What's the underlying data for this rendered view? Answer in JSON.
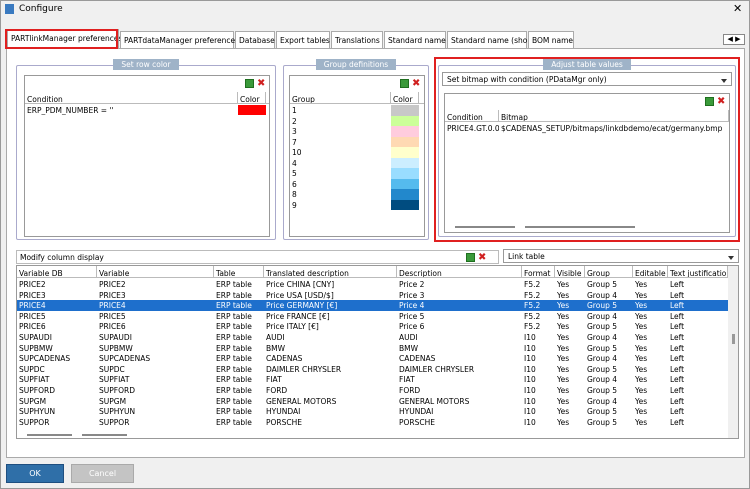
{
  "window": {
    "title": "Configure"
  },
  "tabs": {
    "items": [
      "PARTlinkManager preferences",
      "PARTdataManager preferences",
      "Database",
      "Export tables",
      "Translations",
      "Standard name",
      "Standard name (short)",
      "BOM name"
    ],
    "active": 0
  },
  "set_row_color": {
    "title": "Set row color",
    "columns": [
      "Condition",
      "Color"
    ],
    "rows": [
      [
        "ERP_PDM_NUMBER = ''"
      ]
    ],
    "colors": [
      "#ff0000"
    ]
  },
  "group_definitions": {
    "title": "Group definitions",
    "columns": [
      "Group",
      "Color"
    ],
    "rows": [
      [
        "1"
      ],
      [
        "2"
      ],
      [
        "3"
      ],
      [
        "7"
      ],
      [
        "10"
      ],
      [
        "4"
      ],
      [
        "5"
      ],
      [
        "6"
      ],
      [
        "8"
      ],
      [
        "9"
      ]
    ],
    "colors": [
      "#c8c8c8",
      "#ccff99",
      "#ffccdd",
      "#ffd9b3",
      "#ffffcc",
      "#cceeff",
      "#99ddff",
      "#55bbee",
      "#2288cc",
      "#004c80"
    ]
  },
  "adjust_table_values": {
    "title": "Adjust table values",
    "dropdown": "Set bitmap with condition (PDataMgr only)",
    "columns": [
      "Condition",
      "Bitmap"
    ],
    "rows": [
      [
        "PRICE4.GT.0.0",
        "$CADENAS_SETUP/bitmaps/linkdbdemo/ecat/germany.bmp"
      ]
    ]
  },
  "modify_column_display": {
    "label": "Modify column display",
    "dropdown": "Link table",
    "selected_row": 2,
    "columns": [
      "Variable DB",
      "Variable",
      "Table",
      "Translated description",
      "Description",
      "Format",
      "Visible",
      "Group",
      "Editable",
      "Text justification"
    ],
    "rows": [
      [
        "PRICE2",
        "PRICE2",
        "ERP table",
        "Price CHINA [CNY]",
        "Price 2",
        "F5.2",
        "Yes",
        "Group 5",
        "Yes",
        "Left"
      ],
      [
        "PRICE3",
        "PRICE3",
        "ERP table",
        "Price USA [USD/$]",
        "Price 3",
        "F5.2",
        "Yes",
        "Group 4",
        "Yes",
        "Left"
      ],
      [
        "PRICE4",
        "PRICE4",
        "ERP table",
        "Price GERMANY [€]",
        "Price 4",
        "F5.2",
        "Yes",
        "Group 5",
        "Yes",
        "Left"
      ],
      [
        "PRICE5",
        "PRICE5",
        "ERP table",
        "Price FRANCE [€]",
        "Price 5",
        "F5.2",
        "Yes",
        "Group 4",
        "Yes",
        "Left"
      ],
      [
        "PRICE6",
        "PRICE6",
        "ERP table",
        "Price ITALY [€]",
        "Price 6",
        "F5.2",
        "Yes",
        "Group 5",
        "Yes",
        "Left"
      ],
      [
        "SUPAUDI",
        "SUPAUDI",
        "ERP table",
        "AUDI",
        "AUDI",
        "I10",
        "Yes",
        "Group 4",
        "Yes",
        "Left"
      ],
      [
        "SUPBMW",
        "SUPBMW",
        "ERP table",
        "BMW",
        "BMW",
        "I10",
        "Yes",
        "Group 5",
        "Yes",
        "Left"
      ],
      [
        "SUPCADENAS",
        "SUPCADENAS",
        "ERP table",
        "CADENAS",
        "CADENAS",
        "I10",
        "Yes",
        "Group 4",
        "Yes",
        "Left"
      ],
      [
        "SUPDC",
        "SUPDC",
        "ERP table",
        "DAIMLER CHRYSLER",
        "DAIMLER CHRYSLER",
        "I10",
        "Yes",
        "Group 5",
        "Yes",
        "Left"
      ],
      [
        "SUPFIAT",
        "SUPFIAT",
        "ERP table",
        "FIAT",
        "FIAT",
        "I10",
        "Yes",
        "Group 4",
        "Yes",
        "Left"
      ],
      [
        "SUPFORD",
        "SUPFORD",
        "ERP table",
        "FORD",
        "FORD",
        "I10",
        "Yes",
        "Group 5",
        "Yes",
        "Left"
      ],
      [
        "SUPGM",
        "SUPGM",
        "ERP table",
        "GENERAL MOTORS",
        "GENERAL MOTORS",
        "I10",
        "Yes",
        "Group 4",
        "Yes",
        "Left"
      ],
      [
        "SUPHYUN",
        "SUPHYUN",
        "ERP table",
        "HYUNDAI",
        "HYUNDAI",
        "I10",
        "Yes",
        "Group 5",
        "Yes",
        "Left"
      ],
      [
        "SUPPOR",
        "SUPPOR",
        "ERP table",
        "PORSCHE",
        "PORSCHE",
        "I10",
        "Yes",
        "Group 5",
        "Yes",
        "Left"
      ]
    ]
  },
  "buttons": {
    "ok": "OK",
    "cancel": "Cancel"
  }
}
